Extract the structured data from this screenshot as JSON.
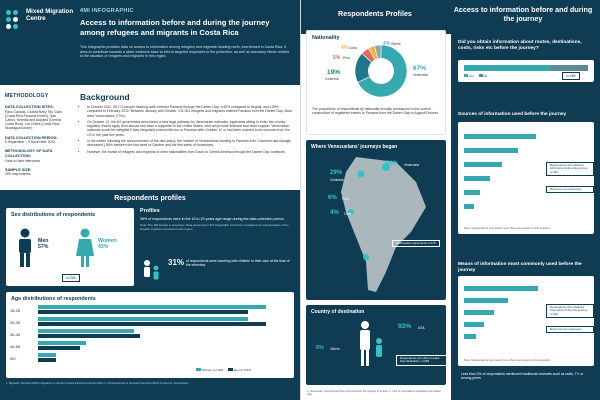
{
  "page1": {
    "logo": {
      "name": "Mixed Migration Centre"
    },
    "tag": "4MI INFOGRAPHIC",
    "title": "Access to information before and during the journey among refugees and migrants in Costa Rica",
    "intro": "This infographic provides data on access to information among refugees and migrants heading north, interviewed in Costa Rica. It aims to contribute towards a wider evidence base to inform targeted responses in the protection, as well as advocacy efforts related to the situation of refugees and migrants in this region.",
    "sidebar": {
      "heading": "METHODOLOGY",
      "items": [
        {
          "label": "DATA COLLECTION SITES:",
          "value": "Paso Canoas, Ciudad Neily, Rio Claro (Costa Rica Panama border), San Carlos, Heredia and Alajuela (Central Costa Rica), Los Chiles (Costa Rica-Nicaragua border)"
        },
        {
          "label": "DATA COLLECTION PERIOD:",
          "value": "9 September – 9 November 2022"
        },
        {
          "label": "METHODOLOGY OF DATA COLLECTION:",
          "value": "Face-to-face interviews"
        },
        {
          "label": "SAMPLE SIZE:",
          "value": "269 respondents"
        }
      ]
    },
    "background": {
      "title": "Background",
      "bullets": [
        "In October 2022, 59,773 people heading north entered Panama through the Darien Gap, a 60% compared to August, and 109% compared to February 2022. Between January and October, 211,301 refugees and migrants entered Panama from the Darien Gap. Most were Venezuelans (73%).",
        "On October 12, the US government announced a new legal pathway for Venezuelan nationals. Applicants willing to enter the country regularly should apply from abroad and have a supporter in the United States, who will provide financial and other support. Venezuelan nationals would be ineligible if they irregularly entered Mexico or Panama after October 12 or had been ordered to be removed from the US in the past five years.",
        "In the weeks following the announcement of the new policy, the number of Venezuelans heading to Panama from Colombia has strongly decreased (-88% between the first week of October and the first week of November).",
        "However, the transit of refugees and migrants of other nationalities from South to Central America through the Darien Gap continues."
      ]
    },
    "respondents_profiles": {
      "title": "Respondents profiles",
      "sex_title": "Sex distributions of respondents",
      "men_label": "Men",
      "men_pct": "57%",
      "women_label": "Women",
      "women_pct": "43%",
      "n_label": "n=269",
      "profiles_title": "Profiles",
      "profiles_bullet": "36% of respondents were in the 18 to 25 years age range during the data collection period.",
      "profiles_note": "Note: The 4Mi sample is purposive. Data presented in this infographic cannot be considered as representative of the broader migration dynamics in the region.",
      "travel_pct": "31%",
      "travel_text": "of respondents were traveling with children in their care at the time of the interview",
      "age_title": "Age distributions of respondents",
      "legend_women": "Women (n=115)",
      "legend_men": "Men (n=154)"
    },
    "footer": "1. Migración Panamá (2022) Irregulares en tránsito frontera Panamá-Colombia 2022.  2. US Department of Homeland Security (2022) Process for Venezuelans."
  },
  "page2": {
    "left_title": "Respondents Profiles",
    "nationality_title": "Nationality",
    "nationality_text": "The proportions of respondents by nationality broadly correspond to the current composition of registered entries to Panama from the Darien Gap in August/October.",
    "journey_title": "Where Venezuelans' journeys began",
    "journey_n": "Venezuelan respondents n=178",
    "destination_title": "Country of destination",
    "destination_n": "Respondents who did not reach their destination, n=269",
    "map_points": [
      {
        "label": "Venezuela",
        "pct": "59%"
      },
      {
        "label": "Colombia",
        "pct": "29%"
      },
      {
        "label": "Peru",
        "pct": "6%"
      },
      {
        "label": "Chile",
        "pct": "4%"
      }
    ],
    "destinations": [
      {
        "label": "USA",
        "pct": "93%"
      },
      {
        "label": "Others",
        "pct": "5%"
      }
    ],
    "right_title": "Access to information before and during the journey",
    "q1": "Did you obtain information about routes, destinations, costs, risks etc before the journey?",
    "q1_legend_yes": "Yes",
    "q1_legend_no": "No",
    "q1_n": "n=269",
    "sources_title": "Sources of information used before the journey",
    "sources_box1": "Respondents who obtained information before the journey, n=184",
    "sources_box2": "Most common responses",
    "sources_note": "Note: Respondents may select more than one answer to this question",
    "means_title": "Means of information most commonly used before the journey",
    "means_box1": "Respondents who obtained information before the journey, n=184",
    "means_box2": "Most common responses",
    "means_note": "Note: Respondents may select more than one answer to this question",
    "means_bullet": "Less than 2% of respondents mentioned traditional channels such as radio, TV or among peers.",
    "footer": "3. Venezuela, Colombia and Peru accounted for the majority of entries.  4. 71% of respondents considered the Darien Gap."
  },
  "chart_data": [
    {
      "type": "pie",
      "title": "Nationality",
      "series": [
        {
          "name": "Venezuela",
          "value": 67
        },
        {
          "name": "Colombia",
          "value": 19
        },
        {
          "name": "Peru",
          "value": 5
        },
        {
          "name": "Cuba",
          "value": 4
        },
        {
          "name": "Others",
          "value": 4
        }
      ],
      "colors": {
        "Venezuela": "#36a9b0",
        "Colombia": "#1f7787",
        "Peru": "#e1685b",
        "Cuba": "#f1b34c",
        "Others": "#8fa4ad"
      }
    },
    {
      "type": "bar",
      "title": "Age distributions of respondents",
      "categories": [
        "18-25",
        "26-35",
        "36-45",
        "46-55",
        "56+"
      ],
      "series": [
        {
          "name": "Women (n=115)",
          "values": [
            38,
            35,
            16,
            8,
            3
          ]
        },
        {
          "name": "Men (n=154)",
          "values": [
            35,
            38,
            17,
            7,
            3
          ]
        }
      ],
      "colors": {
        "Women (n=115)": "#36a9b0",
        "Men (n=154)": "#0f3b53"
      }
    },
    {
      "type": "bar",
      "title": "Did you obtain information about routes, destinations, costs, risks etc before the journey?",
      "categories": [
        "Yes",
        "No"
      ],
      "values": [
        69,
        31
      ],
      "colors": {
        "Yes": "#36a9b0",
        "No": "#5b8a99"
      }
    }
  ]
}
